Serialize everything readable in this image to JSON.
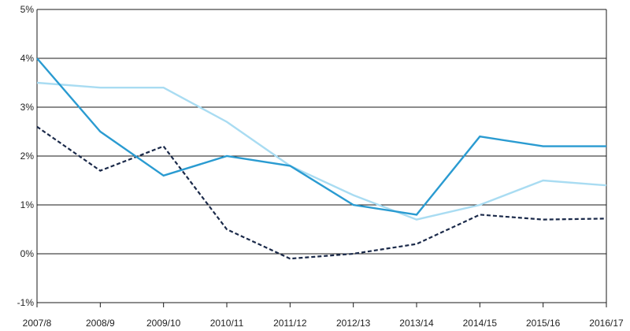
{
  "chart_data": {
    "type": "line",
    "categories": [
      "2007/8",
      "2008/9",
      "2009/10",
      "2010/11",
      "2011/12",
      "2012/13",
      "2013/14",
      "2014/15",
      "2015/16",
      "2016/17"
    ],
    "series": [
      {
        "color": "#2a9bd1",
        "style": "solid",
        "values": [
          4.0,
          2.5,
          1.6,
          2.0,
          1.8,
          1.0,
          0.8,
          2.4,
          2.2,
          2.2
        ]
      },
      {
        "color": "#a9dcf2",
        "style": "solid",
        "values": [
          3.5,
          3.4,
          3.4,
          2.7,
          1.8,
          1.2,
          0.7,
          1.0,
          1.5,
          1.4
        ]
      },
      {
        "color": "#1b2a4a",
        "style": "dashed",
        "values": [
          2.6,
          1.7,
          2.2,
          0.5,
          -0.1,
          0.0,
          0.2,
          0.8,
          0.7,
          0.72
        ]
      }
    ],
    "yticks": [
      "-1%",
      "0%",
      "1%",
      "2%",
      "3%",
      "4%",
      "5%"
    ],
    "ylim": [
      -1,
      5
    ],
    "grid": "horizontal",
    "legend": "none",
    "title": "",
    "xlabel": "",
    "ylabel": ""
  }
}
